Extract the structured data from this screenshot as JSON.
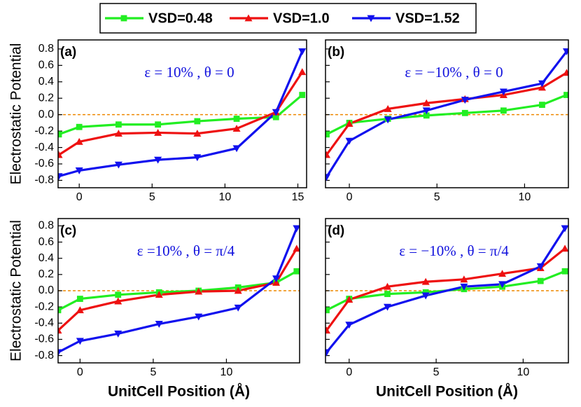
{
  "chart_data": [
    {
      "type": "line",
      "panel_label": "(a)",
      "annotation": "ε = 10% , θ = 0",
      "y_label": "Electrostatic Potential",
      "x": [
        -1.4,
        0,
        2.7,
        5.4,
        8.1,
        10.8,
        13.5,
        15.3
      ],
      "series": [
        {
          "name": "VSD=0.48",
          "color": "#22ee22",
          "marker": "square",
          "values": [
            -0.24,
            -0.15,
            -0.12,
            -0.12,
            -0.08,
            -0.05,
            -0.03,
            0.24
          ]
        },
        {
          "name": "VSD=1.0",
          "color": "#ee1111",
          "marker": "triangle-up",
          "values": [
            -0.49,
            -0.33,
            -0.23,
            -0.22,
            -0.23,
            -0.17,
            0.03,
            0.52
          ]
        },
        {
          "name": "VSD=1.52",
          "color": "#1111ee",
          "marker": "triangle-down",
          "values": [
            -0.75,
            -0.68,
            -0.61,
            -0.55,
            -0.52,
            -0.41,
            0.03,
            0.77
          ]
        }
      ],
      "xlim": [
        -1.45,
        15.6
      ],
      "xticks": [
        0,
        5,
        10,
        15
      ],
      "ylim": [
        -0.89,
        0.91
      ],
      "yticks": [
        -0.8,
        -0.6,
        -0.4,
        -0.2,
        {
          "value": 0,
          "label": "0.0"
        },
        0.2,
        0.4,
        0.6,
        0.8
      ],
      "hline": 0,
      "hline_color": "#ee8800"
    },
    {
      "type": "line",
      "panel_label": "(b)",
      "annotation": "ε = −10% , θ = 0",
      "x": [
        -1.3,
        0,
        2.2,
        4.4,
        6.6,
        8.8,
        11.0,
        12.4
      ],
      "series": [
        {
          "name": "VSD=0.48",
          "color": "#22ee22",
          "marker": "square",
          "values": [
            -0.24,
            -0.1,
            -0.05,
            -0.01,
            0.02,
            0.05,
            0.12,
            0.24
          ]
        },
        {
          "name": "VSD=1.0",
          "color": "#ee1111",
          "marker": "triangle-up",
          "values": [
            -0.49,
            -0.11,
            0.07,
            0.14,
            0.19,
            0.24,
            0.33,
            0.51
          ]
        },
        {
          "name": "VSD=1.52",
          "color": "#1111ee",
          "marker": "triangle-down",
          "values": [
            -0.76,
            -0.32,
            -0.06,
            0.05,
            0.18,
            0.28,
            0.38,
            0.77
          ]
        }
      ],
      "xlim": [
        -1.36,
        12.5
      ],
      "xticks": [
        0,
        5,
        10
      ],
      "ylim": [
        -0.89,
        0.91
      ],
      "yticks": [
        -0.8,
        -0.6,
        -0.4,
        -0.2,
        0,
        0.2,
        0.4,
        0.6,
        0.8
      ],
      "ytick_labels": false,
      "hline": 0,
      "hline_color": "#ee8800"
    },
    {
      "type": "line",
      "panel_label": "(c)",
      "annotation": "ε =10% , θ = π/4",
      "y_label": "Electrostatic Potential",
      "x_label": "UnitCell Position (Å)",
      "x": [
        -1.5,
        0,
        2.6,
        5.4,
        8.1,
        10.8,
        13.4,
        14.8
      ],
      "series": [
        {
          "name": "VSD=0.48",
          "color": "#22ee22",
          "marker": "square",
          "values": [
            -0.24,
            -0.1,
            -0.05,
            -0.02,
            0.0,
            0.04,
            0.1,
            0.24
          ]
        },
        {
          "name": "VSD=1.0",
          "color": "#ee1111",
          "marker": "triangle-up",
          "values": [
            -0.49,
            -0.24,
            -0.13,
            -0.05,
            -0.01,
            0.0,
            0.1,
            0.52
          ]
        },
        {
          "name": "VSD=1.52",
          "color": "#1111ee",
          "marker": "triangle-down",
          "values": [
            -0.76,
            -0.62,
            -0.53,
            -0.41,
            -0.32,
            -0.21,
            0.15,
            0.77
          ]
        }
      ],
      "xlim": [
        -1.5,
        15.0
      ],
      "xticks": [
        0,
        5,
        10
      ],
      "ylim": [
        -0.89,
        0.89
      ],
      "yticks": [
        -0.8,
        -0.6,
        -0.4,
        -0.2,
        {
          "value": 0,
          "label": "0.0"
        },
        0.2,
        0.4,
        0.6,
        0.8
      ],
      "hline": 0,
      "hline_color": "#ee8800"
    },
    {
      "type": "line",
      "panel_label": "(d)",
      "annotation": "ε = −10% , θ = π/4",
      "x_label": "UnitCell Position (Å)",
      "x": [
        -1.3,
        0,
        2.2,
        4.4,
        6.6,
        8.8,
        11.0,
        12.4
      ],
      "series": [
        {
          "name": "VSD=0.48",
          "color": "#22ee22",
          "marker": "square",
          "values": [
            -0.24,
            -0.1,
            -0.04,
            -0.02,
            0.02,
            0.05,
            0.12,
            0.24
          ]
        },
        {
          "name": "VSD=1.0",
          "color": "#ee1111",
          "marker": "triangle-up",
          "values": [
            -0.49,
            -0.11,
            0.05,
            0.11,
            0.14,
            0.21,
            0.28,
            0.52
          ]
        },
        {
          "name": "VSD=1.52",
          "color": "#1111ee",
          "marker": "triangle-down",
          "values": [
            -0.76,
            -0.42,
            -0.2,
            -0.06,
            0.05,
            0.08,
            0.3,
            0.77
          ]
        }
      ],
      "xlim": [
        -1.36,
        12.6
      ],
      "xticks": [
        0,
        5,
        10
      ],
      "ylim": [
        -0.89,
        0.89
      ],
      "yticks": [
        -0.8,
        -0.6,
        -0.4,
        -0.2,
        0,
        0.2,
        0.4,
        0.6,
        0.8
      ],
      "ytick_labels": false,
      "hline": 0,
      "hline_color": "#ee8800"
    }
  ]
}
